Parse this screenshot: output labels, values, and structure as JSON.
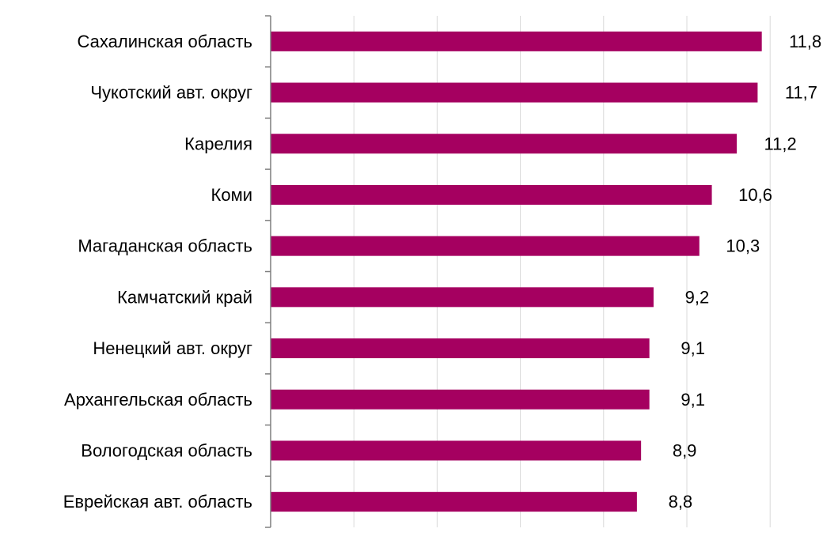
{
  "chart_data": {
    "type": "bar",
    "orientation": "horizontal",
    "categories": [
      "Сахалинская область",
      "Чукотский авт. округ",
      "Карелия",
      "Коми",
      "Магаданская область",
      "Камчатский край",
      "Ненецкий авт. округ",
      "Архангельская область",
      "Вологодская область",
      "Еврейская авт. область"
    ],
    "values": [
      11.8,
      11.7,
      11.2,
      10.6,
      10.3,
      9.2,
      9.1,
      9.1,
      8.9,
      8.8
    ],
    "value_labels": [
      "11,8",
      "11,7",
      "11,2",
      "10,6",
      "10,3",
      "9,2",
      "9,1",
      "9,1",
      "8,9",
      "8,8"
    ],
    "xlim": [
      0,
      12
    ],
    "grid": true,
    "bar_color": "#a50060",
    "title": "",
    "xlabel": "",
    "ylabel": ""
  }
}
